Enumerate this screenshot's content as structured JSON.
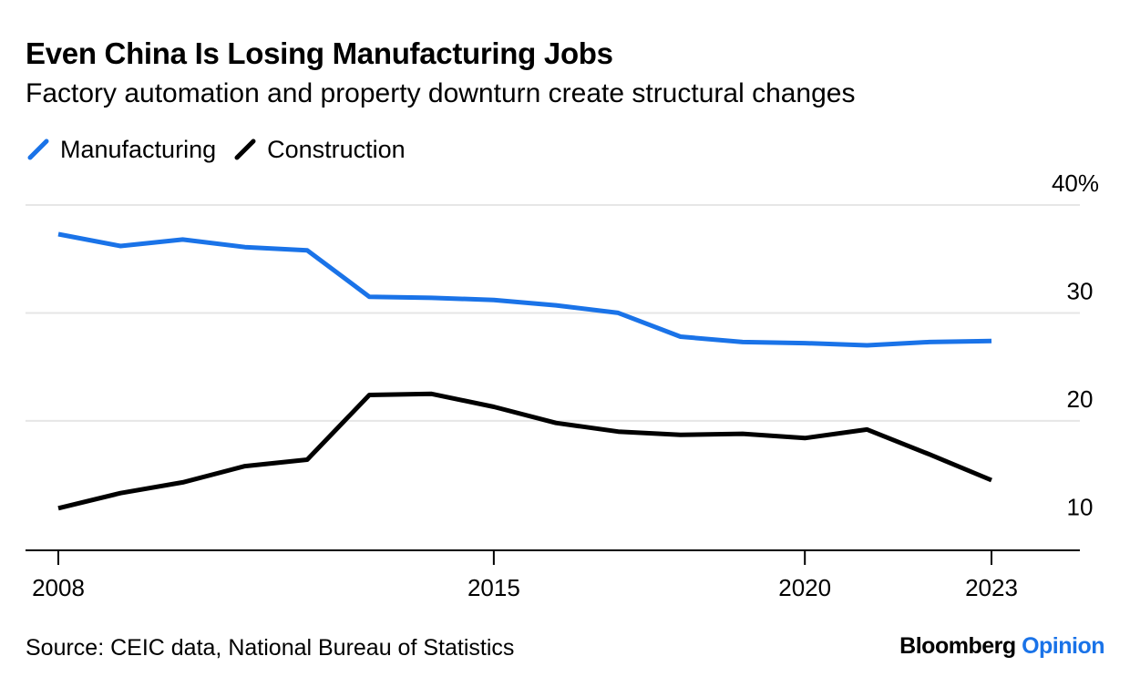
{
  "header": {
    "title": "Even China Is Losing Manufacturing Jobs",
    "subtitle": "Factory automation and property downturn create structural changes"
  },
  "footer": {
    "source": "Source: CEIC data, National Bureau of Statistics",
    "brand_primary": "Bloomberg",
    "brand_secondary": "Opinion"
  },
  "colors": {
    "manufacturing": "#1a73e8",
    "construction": "#000000",
    "grid": "#e6e6e6"
  },
  "chart_data": {
    "type": "line",
    "title": "Even China Is Losing Manufacturing Jobs",
    "subtitle": "Factory automation and property downturn create structural changes",
    "x": [
      2008,
      2009,
      2010,
      2011,
      2012,
      2013,
      2014,
      2015,
      2016,
      2017,
      2018,
      2019,
      2020,
      2021,
      2022,
      2023
    ],
    "xticks": [
      2008,
      2015,
      2020,
      2023
    ],
    "xlim": [
      2007.5,
      2024.5
    ],
    "yticks": [
      10,
      20,
      30,
      40
    ],
    "ytick_labels": [
      "10",
      "20",
      "30",
      "40%"
    ],
    "ylim": [
      8,
      40
    ],
    "grid": true,
    "legend": "top-left",
    "series": [
      {
        "name": "Manufacturing",
        "color": "#1a73e8",
        "values": [
          37.3,
          36.2,
          36.8,
          36.1,
          35.8,
          31.5,
          31.4,
          31.2,
          30.7,
          30.0,
          27.8,
          27.3,
          27.2,
          27.0,
          27.3,
          27.4
        ]
      },
      {
        "name": "Construction",
        "color": "#000000",
        "values": [
          11.9,
          13.3,
          14.3,
          15.8,
          16.4,
          22.4,
          22.5,
          21.3,
          19.8,
          19.0,
          18.7,
          18.8,
          18.4,
          19.2,
          16.9,
          14.5
        ]
      }
    ]
  }
}
